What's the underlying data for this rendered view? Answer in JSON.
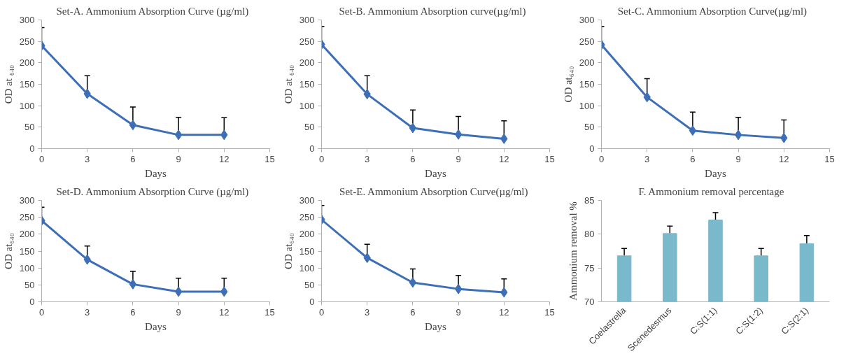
{
  "chart_data": [
    {
      "type": "line",
      "title": "Set-A.   Ammonium Absorption Curve (µg/ml)",
      "xlabel": "Days",
      "ylabel": "OD at ₆₄₀",
      "x": [
        0,
        3,
        6,
        9,
        12
      ],
      "xlim": [
        0,
        15
      ],
      "xticks": [
        0,
        3,
        6,
        9,
        12,
        15
      ],
      "ylim": [
        0,
        300
      ],
      "yticks": [
        0,
        50,
        100,
        150,
        200,
        250,
        300
      ],
      "marker": "diamond",
      "series": [
        {
          "color": "#3d6fb6",
          "values": [
            240,
            128,
            55,
            32,
            32
          ],
          "errors": [
            [
              240,
              282
            ],
            [
              128,
              170
            ],
            [
              55,
              97
            ],
            [
              32,
              73
            ],
            [
              32,
              72
            ]
          ]
        }
      ]
    },
    {
      "type": "line",
      "title": "Set-B.   Ammonium Absorption curve(µg/ml)",
      "xlabel": "Days",
      "ylabel": "OD at ₆₄₀",
      "x": [
        0,
        3,
        6,
        9,
        12
      ],
      "xlim": [
        0,
        15
      ],
      "xticks": [
        0,
        3,
        6,
        9,
        12,
        15
      ],
      "ylim": [
        0,
        300
      ],
      "yticks": [
        0,
        50,
        100,
        150,
        200,
        250,
        300
      ],
      "marker": "diamond",
      "series": [
        {
          "color": "#3d6fb6",
          "values": [
            243,
            127,
            48,
            33,
            23
          ],
          "errors": [
            [
              243,
              285
            ],
            [
              127,
              170
            ],
            [
              48,
              90
            ],
            [
              33,
              75
            ],
            [
              23,
              65
            ]
          ]
        }
      ]
    },
    {
      "type": "line",
      "title": "Set-C.   Ammonium Absorption Curve(µg/ml)",
      "xlabel": "Days",
      "ylabel": "OD at₆₄₀",
      "x": [
        0,
        3,
        6,
        9,
        12
      ],
      "xlim": [
        0,
        15
      ],
      "xticks": [
        0,
        3,
        6,
        9,
        12,
        15
      ],
      "ylim": [
        0,
        300
      ],
      "yticks": [
        0,
        50,
        100,
        150,
        200,
        250,
        300
      ],
      "marker": "diamond",
      "series": [
        {
          "color": "#3d6fb6",
          "values": [
            242,
            120,
            42,
            32,
            25
          ],
          "errors": [
            [
              242,
              285
            ],
            [
              120,
              163
            ],
            [
              42,
              85
            ],
            [
              32,
              73
            ],
            [
              25,
              67
            ]
          ]
        }
      ]
    },
    {
      "type": "line",
      "title": "Set-D.   Ammonium Absorption Curve (µg/ml)",
      "xlabel": "Days",
      "ylabel": "OD at₆₄₀",
      "x": [
        0,
        3,
        6,
        9,
        12
      ],
      "xlim": [
        0,
        15
      ],
      "xticks": [
        0,
        3,
        6,
        9,
        12,
        15
      ],
      "ylim": [
        0,
        300
      ],
      "yticks": [
        0,
        50,
        100,
        150,
        200,
        250,
        300
      ],
      "marker": "diamond",
      "series": [
        {
          "color": "#3d6fb6",
          "values": [
            240,
            125,
            52,
            30,
            30
          ],
          "errors": [
            [
              240,
              280
            ],
            [
              125,
              165
            ],
            [
              52,
              90
            ],
            [
              30,
              70
            ],
            [
              30,
              70
            ]
          ]
        }
      ]
    },
    {
      "type": "line",
      "title": "Set-E.  Ammonium Absorption Curve(µg/ml)",
      "xlabel": "Days",
      "ylabel": "OD at₆₄₀",
      "x": [
        0,
        3,
        6,
        9,
        12
      ],
      "xlim": [
        0,
        15
      ],
      "xticks": [
        0,
        3,
        6,
        9,
        12,
        15
      ],
      "ylim": [
        0,
        300
      ],
      "yticks": [
        0,
        50,
        100,
        150,
        200,
        250,
        300
      ],
      "marker": "diamond",
      "series": [
        {
          "color": "#3d6fb6",
          "values": [
            243,
            130,
            57,
            38,
            28
          ],
          "errors": [
            [
              243,
              285
            ],
            [
              130,
              170
            ],
            [
              57,
              97
            ],
            [
              38,
              78
            ],
            [
              28,
              68
            ]
          ]
        }
      ]
    },
    {
      "type": "bar",
      "title": "F.    Ammonium removal percentage",
      "ylabel": "Ammonium removal %",
      "categories": [
        "Coelastrella",
        "Scenedesmus",
        "C:S(1:1)",
        "C:S(1:2)",
        "C:S(2:1)"
      ],
      "ylim": [
        70,
        85
      ],
      "yticks": [
        70,
        75,
        80,
        85
      ],
      "series": [
        {
          "color": "#7ab8cc",
          "values": [
            76.8,
            80.1,
            82.1,
            76.8,
            78.6
          ],
          "errors": [
            [
              76.8,
              77.9
            ],
            [
              80.1,
              81.2
            ],
            [
              82.1,
              83.2
            ],
            [
              76.8,
              77.9
            ],
            [
              78.6,
              79.8
            ]
          ]
        }
      ]
    }
  ]
}
